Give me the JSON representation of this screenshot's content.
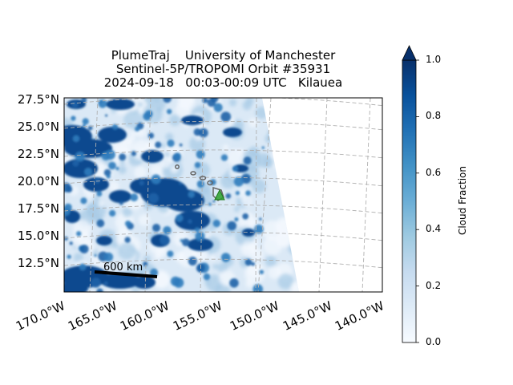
{
  "title": {
    "line1": "PlumeTraj    University of Manchester",
    "line2": "Sentinel-5P/TROPOMI Orbit #35931",
    "line3": "2024-09-18   00:03-00:09 UTC   Kilauea"
  },
  "map": {
    "lat_labels": [
      "27.5°N",
      "25.0°N",
      "22.5°N",
      "20.0°N",
      "17.5°N",
      "15.0°N",
      "12.5°N"
    ],
    "lon_labels": [
      "170.0°W",
      "165.0°W",
      "160.0°W",
      "155.0°W",
      "150.0°W",
      "145.0°W",
      "140.0°W"
    ],
    "scale_bar_label": "600 km",
    "volcano_marker": "triangle-icon"
  },
  "colorbar": {
    "label": "Cloud Fraction",
    "ticks": [
      "0.0",
      "0.2",
      "0.4",
      "0.6",
      "0.8",
      "1.0"
    ],
    "extend": "max",
    "colormap": "Blues"
  },
  "chart_data": {
    "type": "heatmap",
    "variable": "Cloud Fraction",
    "value_range": [
      0.0,
      1.0
    ],
    "colorbar_ticks": [
      0.0,
      0.2,
      0.4,
      0.6,
      0.8,
      1.0
    ],
    "latitude_ticks": [
      27.5,
      25.0,
      22.5,
      20.0,
      17.5,
      15.0,
      12.5
    ],
    "longitude_ticks": [
      -170.0,
      -165.0,
      -160.0,
      -155.0,
      -150.0,
      -145.0,
      -140.0
    ],
    "grid": true
  }
}
